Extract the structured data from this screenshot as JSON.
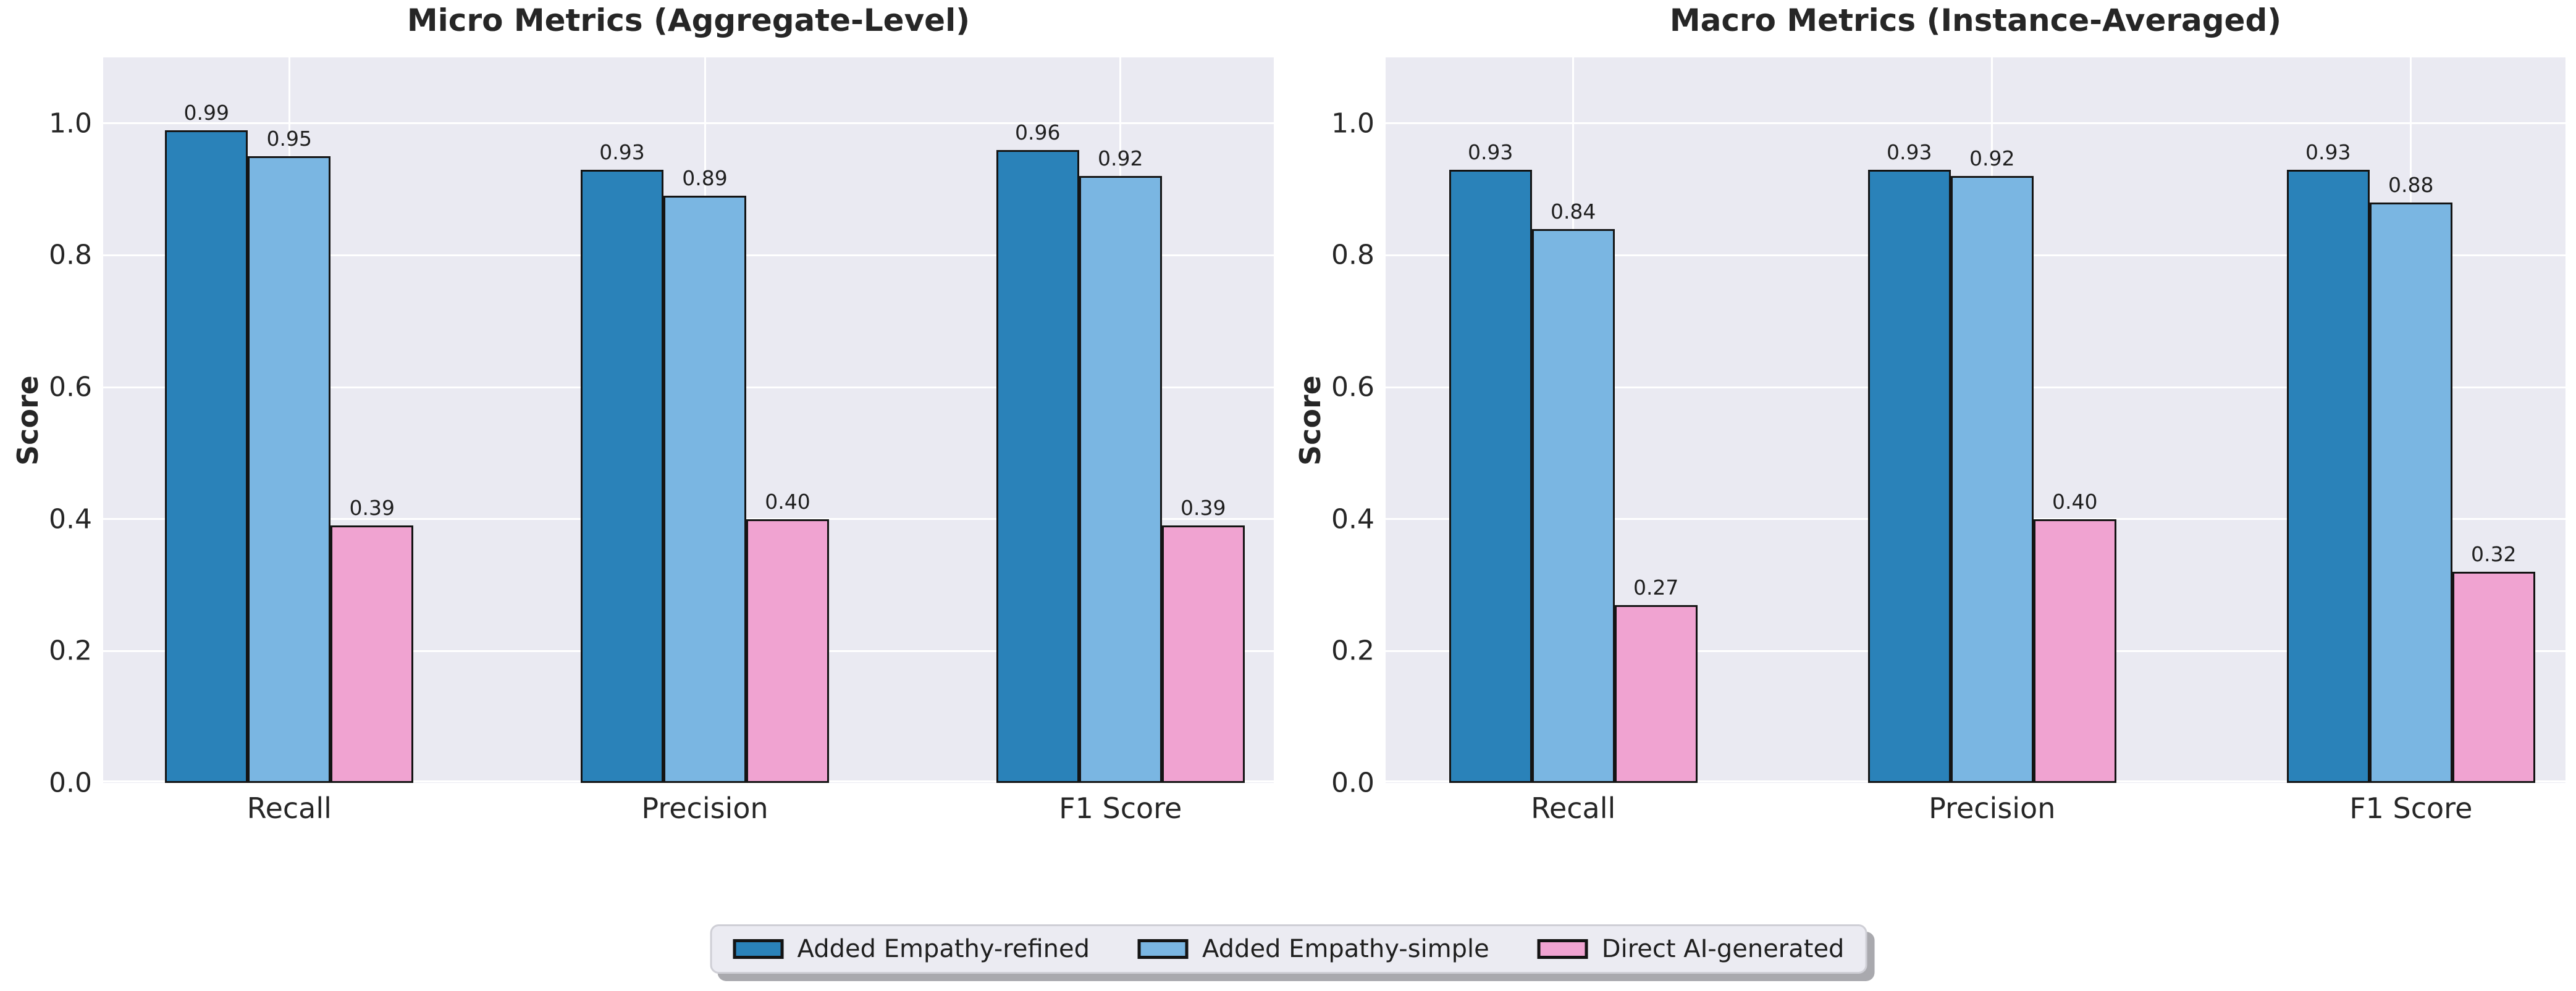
{
  "style": {
    "figure_bg": "#ffffff",
    "axes_bg": "#eaeaf2",
    "grid_color": "#ffffff",
    "text_color": "#262626",
    "bar_edge_color": "#141414",
    "legend_bg": "#ebebf2",
    "legend_shadow": "#a9a9ae"
  },
  "chart_data": [
    {
      "type": "bar",
      "title": "Micro Metrics (Aggregate-Level)",
      "ylabel": "Score",
      "xlabel": "",
      "categories": [
        "Recall",
        "Precision",
        "F1 Score"
      ],
      "series": [
        {
          "name": "Added Empathy-refined",
          "color": "#2a82b9",
          "values": [
            0.99,
            0.93,
            0.96
          ]
        },
        {
          "name": "Added Empathy-simple",
          "color": "#7ab6e2",
          "values": [
            0.95,
            0.89,
            0.92
          ]
        },
        {
          "name": "Direct AI-generated",
          "color": "#f0a3d1",
          "values": [
            0.39,
            0.4,
            0.39
          ]
        }
      ],
      "ylim": [
        0,
        1.1
      ],
      "yticks": [
        0.0,
        0.2,
        0.4,
        0.6,
        0.8,
        1.0
      ],
      "grid": true,
      "value_labels": true,
      "legend_position": "lower center (shared)"
    },
    {
      "type": "bar",
      "title": "Macro Metrics (Instance-Averaged)",
      "ylabel": "Score",
      "xlabel": "",
      "categories": [
        "Recall",
        "Precision",
        "F1 Score"
      ],
      "series": [
        {
          "name": "Added Empathy-refined",
          "color": "#2a82b9",
          "values": [
            0.93,
            0.93,
            0.93
          ]
        },
        {
          "name": "Added Empathy-simple",
          "color": "#7ab6e2",
          "values": [
            0.84,
            0.92,
            0.88
          ]
        },
        {
          "name": "Direct AI-generated",
          "color": "#f0a3d1",
          "values": [
            0.27,
            0.4,
            0.32
          ]
        }
      ],
      "ylim": [
        0,
        1.1
      ],
      "yticks": [
        0.0,
        0.2,
        0.4,
        0.6,
        0.8,
        1.0
      ],
      "grid": true,
      "value_labels": true,
      "legend_position": "lower center (shared)"
    }
  ],
  "legend": {
    "entries": [
      {
        "label": "Added Empathy-refined",
        "color": "#2a82b9"
      },
      {
        "label": "Added Empathy-simple",
        "color": "#7ab6e2"
      },
      {
        "label": "Direct AI-generated",
        "color": "#f0a3d1"
      }
    ]
  }
}
